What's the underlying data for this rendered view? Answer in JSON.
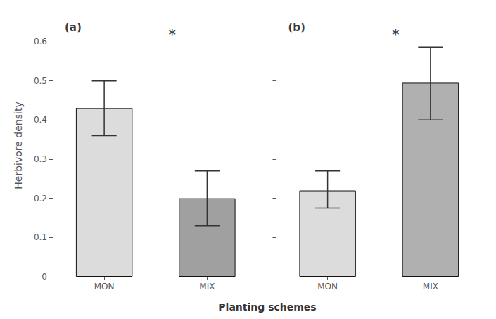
{
  "chart_data": [
    {
      "type": "bar",
      "title": "(a)",
      "categories": [
        "MON",
        "MIX"
      ],
      "values": [
        0.43,
        0.2
      ],
      "error_upper": [
        0.07,
        0.07
      ],
      "error_lower": [
        0.07,
        0.07
      ],
      "colors": [
        "#dcdcdc",
        "#a0a0a0"
      ],
      "annotations": [
        {
          "text": "*"
        }
      ],
      "ylabel": "Herbivore density",
      "xlabel": "Planting schemes",
      "ylim": [
        0,
        0.67
      ],
      "yticks": [
        0,
        0.1,
        0.2,
        0.3,
        0.4,
        0.5,
        0.6
      ],
      "grid": false
    },
    {
      "type": "bar",
      "title": "(b)",
      "categories": [
        "MON",
        "MIX"
      ],
      "values": [
        0.22,
        0.495
      ],
      "error_upper": [
        0.05,
        0.09
      ],
      "error_lower": [
        0.045,
        0.095
      ],
      "colors": [
        "#dcdcdc",
        "#b0b0b0"
      ],
      "annotations": [
        {
          "text": "*"
        }
      ],
      "ylim": [
        0,
        0.67
      ],
      "yticks": [
        0,
        0.1,
        0.2,
        0.3,
        0.4,
        0.5,
        0.6
      ],
      "grid": false,
      "tick_labels": "x"
    }
  ]
}
